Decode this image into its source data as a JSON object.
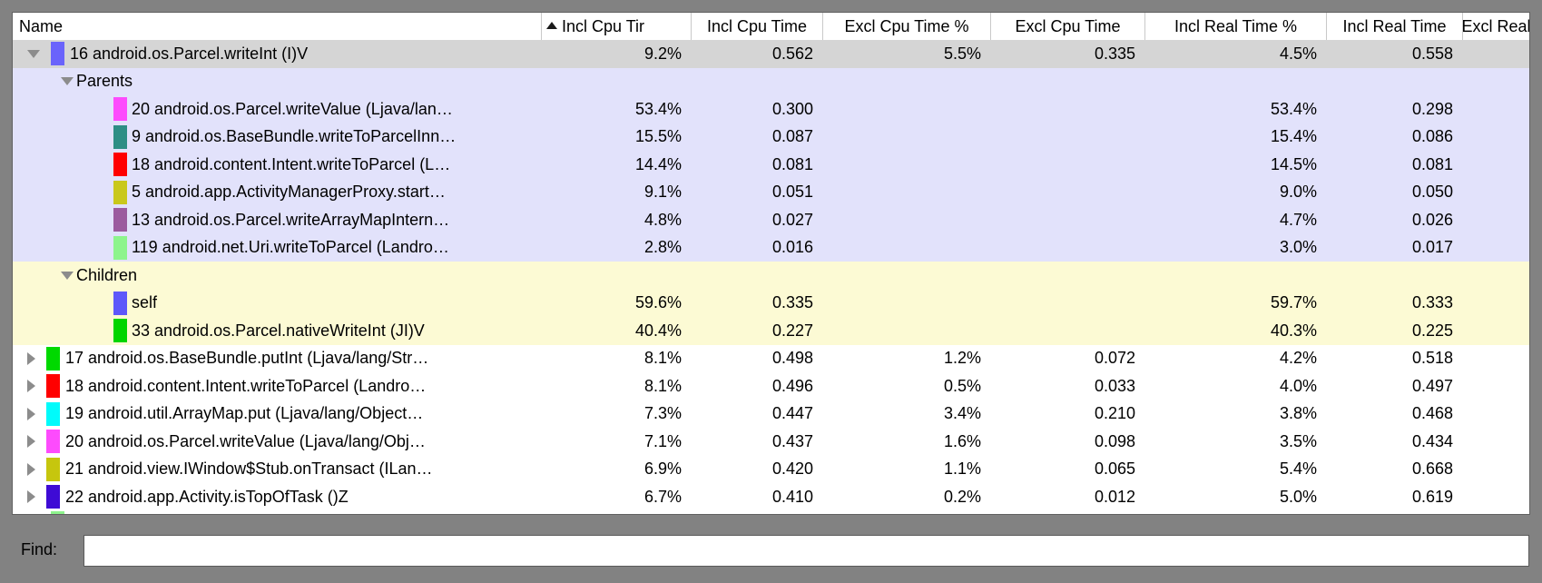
{
  "colors": {
    "window_bg": "#828282",
    "table_border": "#616161",
    "header_separator": "#c9c9c9",
    "selected_row_bg": "#d5d5d5",
    "parents_section_bg": "#e2e2fb",
    "children_section_bg": "#fcfad4",
    "white_row_bg": "#ffffff",
    "disclosure_triangle": "#8c8c8c"
  },
  "table": {
    "columns": [
      {
        "key": "name",
        "label": "Name",
        "sort": null
      },
      {
        "key": "incl-cpu-time-pct",
        "label": "Incl Cpu Tir",
        "sort": "asc"
      },
      {
        "key": "incl-cpu-time",
        "label": "Incl Cpu Time",
        "sort": null
      },
      {
        "key": "excl-cpu-time-pct",
        "label": "Excl Cpu Time %",
        "sort": null
      },
      {
        "key": "excl-cpu-time",
        "label": "Excl Cpu Time",
        "sort": null
      },
      {
        "key": "incl-real-time-pct",
        "label": "Incl Real Time %",
        "sort": null
      },
      {
        "key": "incl-real-time",
        "label": "Incl Real Time",
        "sort": null
      },
      {
        "key": "excl-real",
        "label": "Excl Real",
        "sort": null
      }
    ],
    "rows": [
      {
        "type": "method",
        "arrow": "expanded",
        "swatch": "#6a63fb",
        "bg": "selected",
        "name": "16 android.os.Parcel.writeInt (I)V",
        "values": [
          "9.2%",
          "0.562",
          "5.5%",
          "0.335",
          "4.5%",
          "0.558",
          ""
        ]
      },
      {
        "type": "section",
        "arrow": "expanded",
        "bg": "parents",
        "name": "Parents",
        "values": [
          "",
          "",
          "",
          "",
          "",
          "",
          ""
        ]
      },
      {
        "type": "ref",
        "swatch": "#fd4bfd",
        "bg": "parents",
        "name": "20 android.os.Parcel.writeValue (Ljava/lan…",
        "values": [
          "53.4%",
          "0.300",
          "",
          "",
          "53.4%",
          "0.298",
          ""
        ]
      },
      {
        "type": "ref",
        "swatch": "#2d8e85",
        "bg": "parents",
        "name": "9 android.os.BaseBundle.writeToParcelInn…",
        "values": [
          "15.5%",
          "0.087",
          "",
          "",
          "15.4%",
          "0.086",
          ""
        ]
      },
      {
        "type": "ref",
        "swatch": "#ff0000",
        "bg": "parents",
        "name": "18 android.content.Intent.writeToParcel (L…",
        "values": [
          "14.4%",
          "0.081",
          "",
          "",
          "14.5%",
          "0.081",
          ""
        ]
      },
      {
        "type": "ref",
        "swatch": "#c9c81b",
        "bg": "parents",
        "name": "5 android.app.ActivityManagerProxy.start…",
        "values": [
          "9.1%",
          "0.051",
          "",
          "",
          "9.0%",
          "0.050",
          ""
        ]
      },
      {
        "type": "ref",
        "swatch": "#9b5b9e",
        "bg": "parents",
        "name": "13 android.os.Parcel.writeArrayMapIntern…",
        "values": [
          "4.8%",
          "0.027",
          "",
          "",
          "4.7%",
          "0.026",
          ""
        ]
      },
      {
        "type": "ref",
        "swatch": "#8df48c",
        "bg": "parents",
        "name": "119 android.net.Uri.writeToParcel (Landro…",
        "values": [
          "2.8%",
          "0.016",
          "",
          "",
          "3.0%",
          "0.017",
          ""
        ]
      },
      {
        "type": "section",
        "arrow": "expanded",
        "bg": "children",
        "name": "Children",
        "values": [
          "",
          "",
          "",
          "",
          "",
          "",
          ""
        ]
      },
      {
        "type": "ref",
        "swatch": "#5d58fa",
        "bg": "children",
        "name": "self",
        "values": [
          "59.6%",
          "0.335",
          "",
          "",
          "59.7%",
          "0.333",
          ""
        ]
      },
      {
        "type": "ref",
        "swatch": "#00d500",
        "bg": "children",
        "name": "33 android.os.Parcel.nativeWriteInt (JI)V",
        "values": [
          "40.4%",
          "0.227",
          "",
          "",
          "40.3%",
          "0.225",
          ""
        ]
      },
      {
        "type": "method",
        "arrow": "collapsed",
        "swatch": "#00d900",
        "bg": "white",
        "name": "17 android.os.BaseBundle.putInt (Ljava/lang/Str…",
        "values": [
          "8.1%",
          "0.498",
          "1.2%",
          "0.072",
          "4.2%",
          "0.518",
          ""
        ]
      },
      {
        "type": "method",
        "arrow": "collapsed",
        "swatch": "#ff0000",
        "bg": "white",
        "name": "18 android.content.Intent.writeToParcel (Landro…",
        "values": [
          "8.1%",
          "0.496",
          "0.5%",
          "0.033",
          "4.0%",
          "0.497",
          ""
        ]
      },
      {
        "type": "method",
        "arrow": "collapsed",
        "swatch": "#00fbfb",
        "bg": "white",
        "name": "19 android.util.ArrayMap.put (Ljava/lang/Object…",
        "values": [
          "7.3%",
          "0.447",
          "3.4%",
          "0.210",
          "3.8%",
          "0.468",
          ""
        ]
      },
      {
        "type": "method",
        "arrow": "collapsed",
        "swatch": "#fd4bfd",
        "bg": "white",
        "name": "20 android.os.Parcel.writeValue (Ljava/lang/Obj…",
        "values": [
          "7.1%",
          "0.437",
          "1.6%",
          "0.098",
          "3.5%",
          "0.434",
          ""
        ]
      },
      {
        "type": "method",
        "arrow": "collapsed",
        "swatch": "#c6c60e",
        "bg": "white",
        "name": "21 android.view.IWindow$Stub.onTransact (ILan…",
        "values": [
          "6.9%",
          "0.420",
          "1.1%",
          "0.065",
          "5.4%",
          "0.668",
          ""
        ]
      },
      {
        "type": "method",
        "arrow": "collapsed",
        "swatch": "#3e0bd5",
        "bg": "white",
        "name": "22 android.app.Activity.isTopOfTask ()Z",
        "values": [
          "6.7%",
          "0.410",
          "0.2%",
          "0.012",
          "5.0%",
          "0.619",
          ""
        ]
      },
      {
        "type": "partial",
        "swatch": "#8df48c",
        "bg": "white",
        "name": "",
        "values": [
          "",
          "",
          "",
          "",
          "",
          "",
          ""
        ]
      }
    ]
  },
  "find": {
    "label": "Find:",
    "value": ""
  }
}
